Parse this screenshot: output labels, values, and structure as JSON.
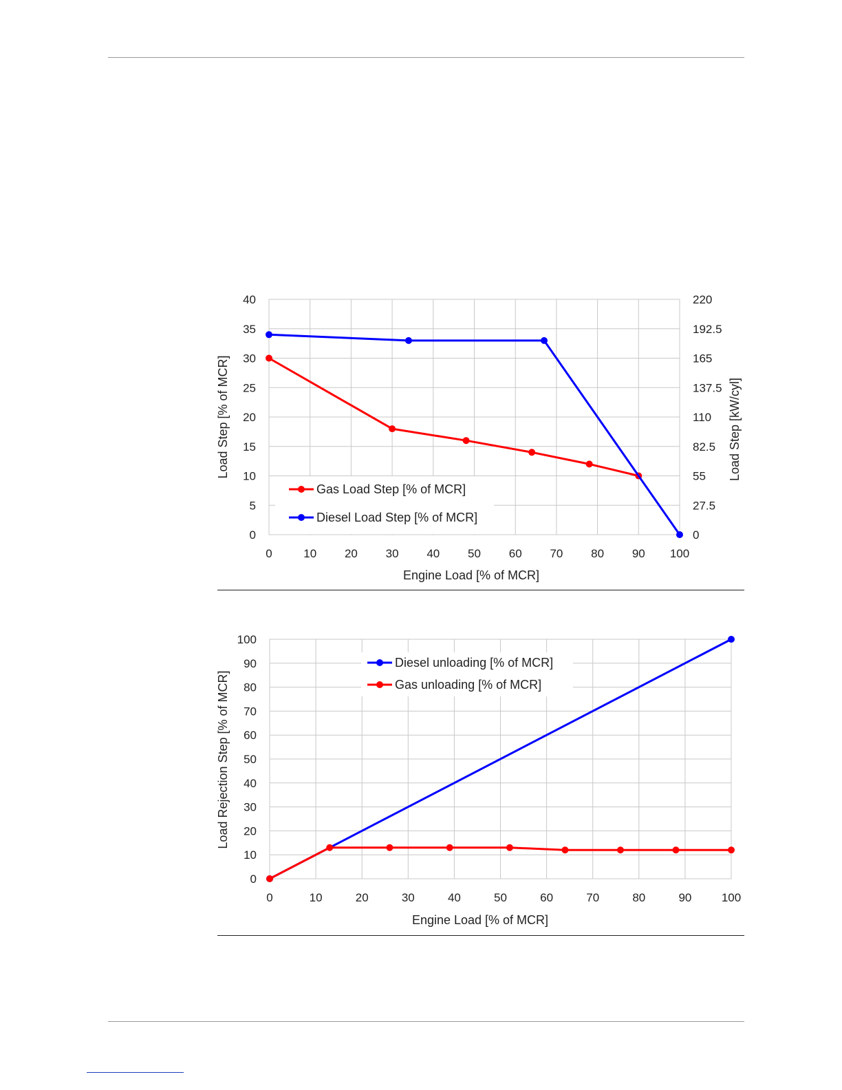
{
  "chart_data": [
    {
      "type": "line",
      "xlabel": "Engine Load  [% of MCR]",
      "ylabel": "Load Step [% of MCR]",
      "y2label": "Load Step [kW/cyl]",
      "xlim": [
        0,
        100
      ],
      "ylim": [
        0,
        40
      ],
      "y2lim": [
        0,
        220
      ],
      "x_ticks": [
        "0",
        "10",
        "20",
        "30",
        "40",
        "50",
        "60",
        "70",
        "80",
        "90",
        "100"
      ],
      "y_ticks": [
        "0",
        "5",
        "10",
        "15",
        "20",
        "25",
        "30",
        "35",
        "40"
      ],
      "y2_ticks": [
        "0",
        "27.5",
        "55",
        "82.5",
        "110",
        "137.5",
        "165",
        "192.5",
        "220"
      ],
      "grid": true,
      "legend_position": "bottom-left",
      "series": [
        {
          "name": "Gas Load Step [% of MCR]",
          "color": "#ff0000",
          "points": [
            [
              0,
              30
            ],
            [
              30,
              18
            ],
            [
              48,
              16
            ],
            [
              64,
              14
            ],
            [
              78,
              12
            ],
            [
              90,
              10
            ]
          ]
        },
        {
          "name": "Diesel Load Step [% of MCR]",
          "color": "#0000ff",
          "points": [
            [
              0,
              34
            ],
            [
              34,
              33
            ],
            [
              67,
              33
            ],
            [
              100,
              0
            ]
          ]
        }
      ]
    },
    {
      "type": "line",
      "xlabel": "Engine Load [% of MCR]",
      "ylabel": "Load Rejection Step [% of MCR]",
      "xlim": [
        0,
        100
      ],
      "ylim": [
        0,
        100
      ],
      "x_ticks": [
        "0",
        "10",
        "20",
        "30",
        "40",
        "50",
        "60",
        "70",
        "80",
        "90",
        "100"
      ],
      "y_ticks": [
        "0",
        "10",
        "20",
        "30",
        "40",
        "50",
        "60",
        "70",
        "80",
        "90",
        "100"
      ],
      "grid": true,
      "legend_position": "top-center",
      "series": [
        {
          "name": "Diesel unloading [% of MCR]",
          "color": "#0000ff",
          "points": [
            [
              0,
              0
            ],
            [
              100,
              100
            ]
          ]
        },
        {
          "name": "Gas unloading [% of MCR]",
          "color": "#ff0000",
          "points": [
            [
              0,
              0
            ],
            [
              13,
              13
            ],
            [
              26,
              13
            ],
            [
              39,
              13
            ],
            [
              52,
              13
            ],
            [
              64,
              12
            ],
            [
              76,
              12
            ],
            [
              88,
              12
            ],
            [
              100,
              12
            ]
          ]
        }
      ]
    }
  ]
}
